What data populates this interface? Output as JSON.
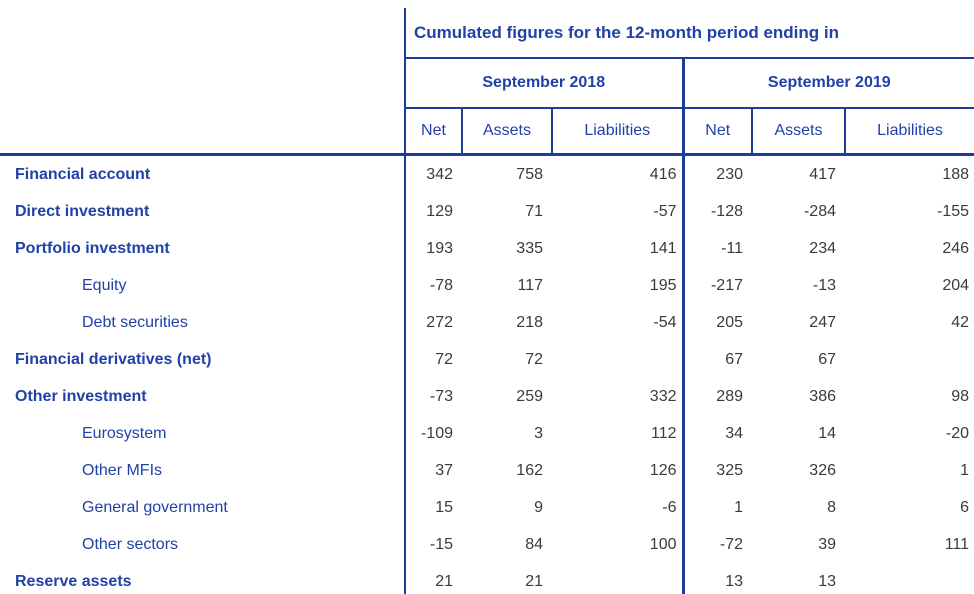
{
  "colors": {
    "header_text_blue": "#2141a8",
    "grid_line_blue": "#1f3c99",
    "number_text": "#3b3b3b",
    "background": "#ffffff"
  },
  "chart_data": {
    "type": "table",
    "title": "Cumulated figures for the 12-month period ending in",
    "periods": [
      {
        "label": "September 2018",
        "columns": [
          "Net",
          "Assets",
          "Liabilities"
        ]
      },
      {
        "label": "September 2019",
        "columns": [
          "Net",
          "Assets",
          "Liabilities"
        ]
      }
    ],
    "rows": [
      {
        "label": "Financial account",
        "level": "main",
        "values": [
          "342",
          "758",
          "416",
          "230",
          "417",
          "188"
        ]
      },
      {
        "label": "Direct investment",
        "level": "main",
        "values": [
          "129",
          "71",
          "-57",
          "-128",
          "-284",
          "-155"
        ]
      },
      {
        "label": "Portfolio investment",
        "level": "main",
        "values": [
          "193",
          "335",
          "141",
          "-11",
          "234",
          "246"
        ]
      },
      {
        "label": "Equity",
        "level": "sub",
        "values": [
          "-78",
          "117",
          "195",
          "-217",
          "-13",
          "204"
        ]
      },
      {
        "label": "Debt securities",
        "level": "sub",
        "values": [
          "272",
          "218",
          "-54",
          "205",
          "247",
          "42"
        ]
      },
      {
        "label": "Financial derivatives (net)",
        "level": "main",
        "values": [
          "72",
          "72",
          "",
          "67",
          "67",
          ""
        ]
      },
      {
        "label": "Other investment",
        "level": "main",
        "values": [
          "-73",
          "259",
          "332",
          "289",
          "386",
          "98"
        ]
      },
      {
        "label": "Eurosystem",
        "level": "sub",
        "values": [
          "-109",
          "3",
          "112",
          "34",
          "14",
          "-20"
        ]
      },
      {
        "label": "Other MFIs",
        "level": "sub",
        "values": [
          "37",
          "162",
          "126",
          "325",
          "326",
          "1"
        ]
      },
      {
        "label": "General government",
        "level": "sub",
        "values": [
          "15",
          "9",
          "-6",
          "1",
          "8",
          "6"
        ]
      },
      {
        "label": "Other sectors",
        "level": "sub",
        "values": [
          "-15",
          "84",
          "100",
          "-72",
          "39",
          "111"
        ]
      },
      {
        "label": "Reserve assets",
        "level": "main",
        "values": [
          "21",
          "21",
          "",
          "13",
          "13",
          ""
        ]
      }
    ]
  }
}
